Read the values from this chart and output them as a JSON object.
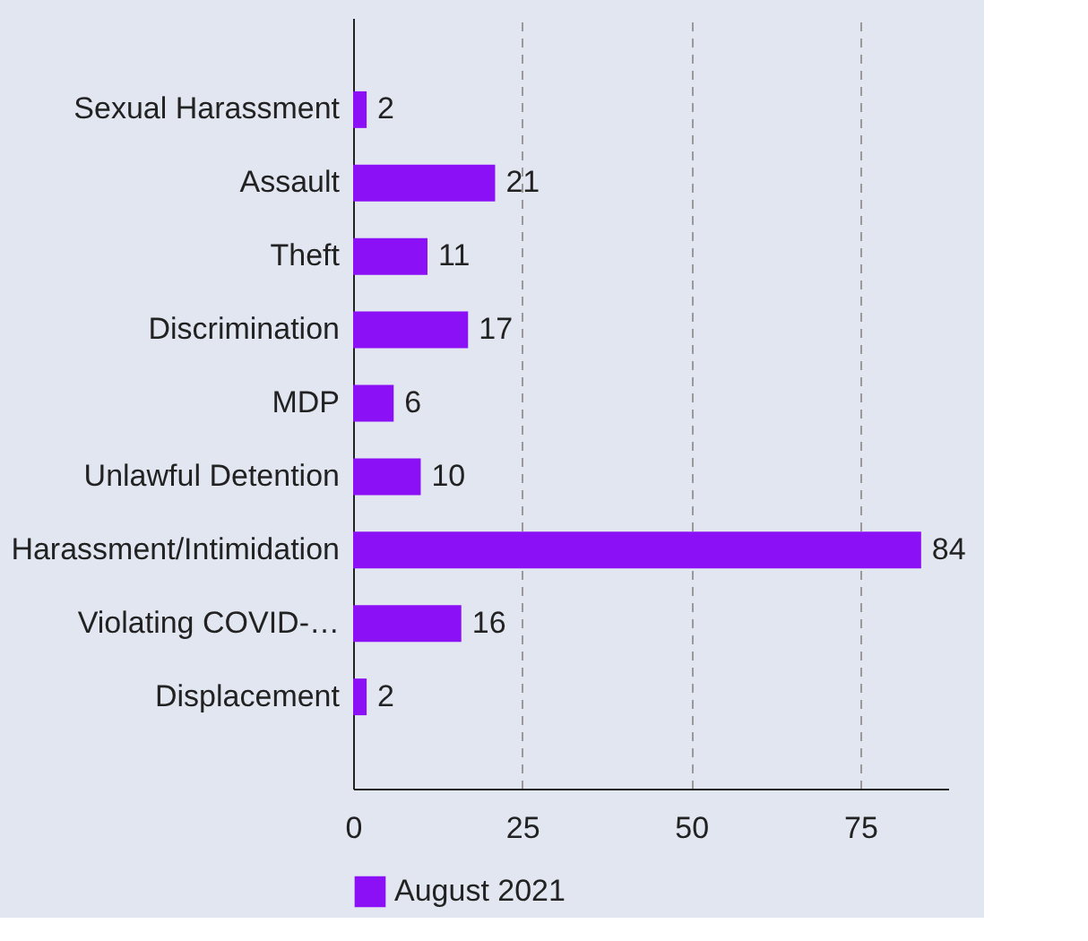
{
  "chart_data": {
    "type": "bar",
    "orientation": "horizontal",
    "categories": [
      "Sexual Harassment",
      "Assault",
      "Theft",
      "Discrimination",
      "MDP",
      "Unlawful Detention",
      "Harassment/Intimidation",
      "Violating COVID-…",
      "Displacement"
    ],
    "series": [
      {
        "name": "August 2021",
        "color": "#8b10f5",
        "values": [
          2,
          21,
          11,
          17,
          6,
          10,
          84,
          16,
          2
        ]
      }
    ],
    "xlim": [
      0,
      88
    ],
    "xticks": [
      0,
      25,
      50,
      75
    ],
    "grid": "x",
    "legend": "bottom",
    "data_labels": true
  }
}
